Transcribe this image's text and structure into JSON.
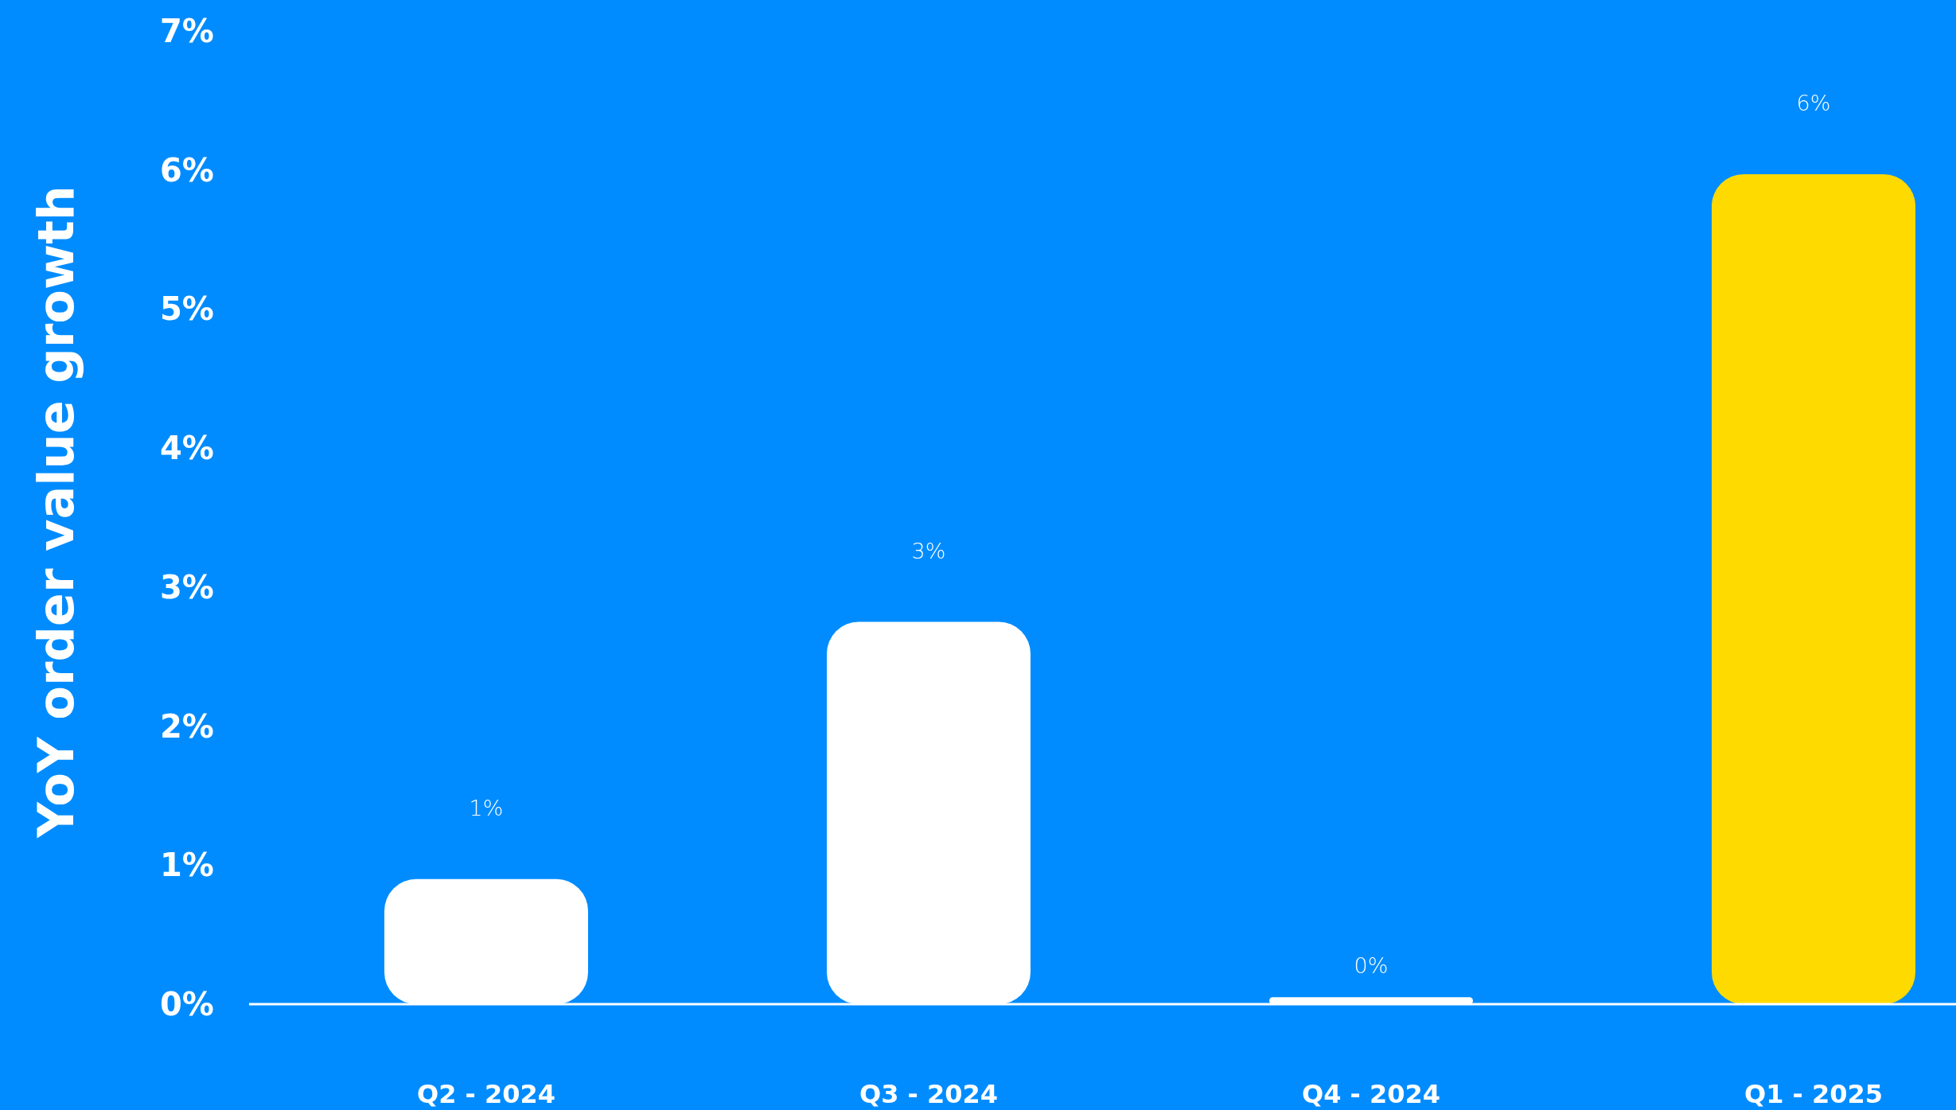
{
  "chart_data": {
    "type": "bar",
    "ylabel": "YoY order value growth",
    "categories": [
      "Q2 - 2024",
      "Q3 - 2024",
      "Q4 - 2024",
      "Q1 - 2025"
    ],
    "values": [
      0.9,
      2.75,
      0.05,
      5.97
    ],
    "colors": [
      "#ffffff",
      "#ffffff",
      "#ffffff",
      "#ffda00"
    ],
    "value_labels": [
      "1%",
      "3%",
      "0%",
      "6%"
    ],
    "ylim": [
      0,
      7
    ],
    "yticks": [
      {
        "value": 0,
        "label": "0%"
      },
      {
        "value": 1,
        "label": "1%"
      },
      {
        "value": 2,
        "label": "2%"
      },
      {
        "value": 3,
        "label": "3%"
      },
      {
        "value": 4,
        "label": "4%"
      },
      {
        "value": 5,
        "label": "5%"
      },
      {
        "value": 6,
        "label": "6%"
      },
      {
        "value": 7,
        "label": "7%"
      }
    ],
    "grid": false
  }
}
